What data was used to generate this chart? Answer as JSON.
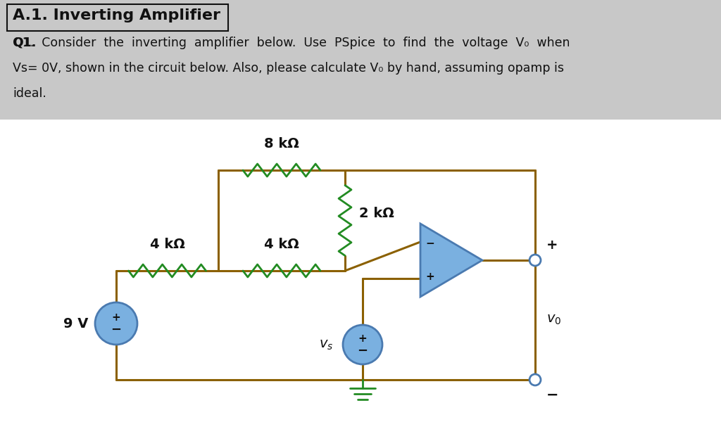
{
  "bg_color": "#c8c8c8",
  "wire_color": "#8B6000",
  "resistor_color": "#228B22",
  "opamp_face": "#7ab0e0",
  "opamp_edge": "#4a7ab0",
  "source_face": "#7ab0e0",
  "source_edge": "#4a7ab0",
  "terminal_color": "#4a7ab0",
  "ground_color": "#228B22",
  "text_color": "#111111",
  "title": "A.1. Inverting Amplifier",
  "q1_line1": "Q1.  Consider  the  inverting  amplifier  below.  Use  PSpice  to  find  the  voltage  V₀  when",
  "q1_line2": "Vs= 0V, shown in the circuit below. Also, please calculate V₀ by hand, assuming opamp is",
  "q1_line3": "ideal.",
  "label_4k1": "4 kΩ",
  "label_4k2": "4 kΩ",
  "label_8k": "8 kΩ",
  "label_2k": "2 kΩ",
  "label_9v": "9 V",
  "label_vs": "v_s",
  "label_vo": "v_0",
  "label_plus": "+",
  "label_minus": "−"
}
